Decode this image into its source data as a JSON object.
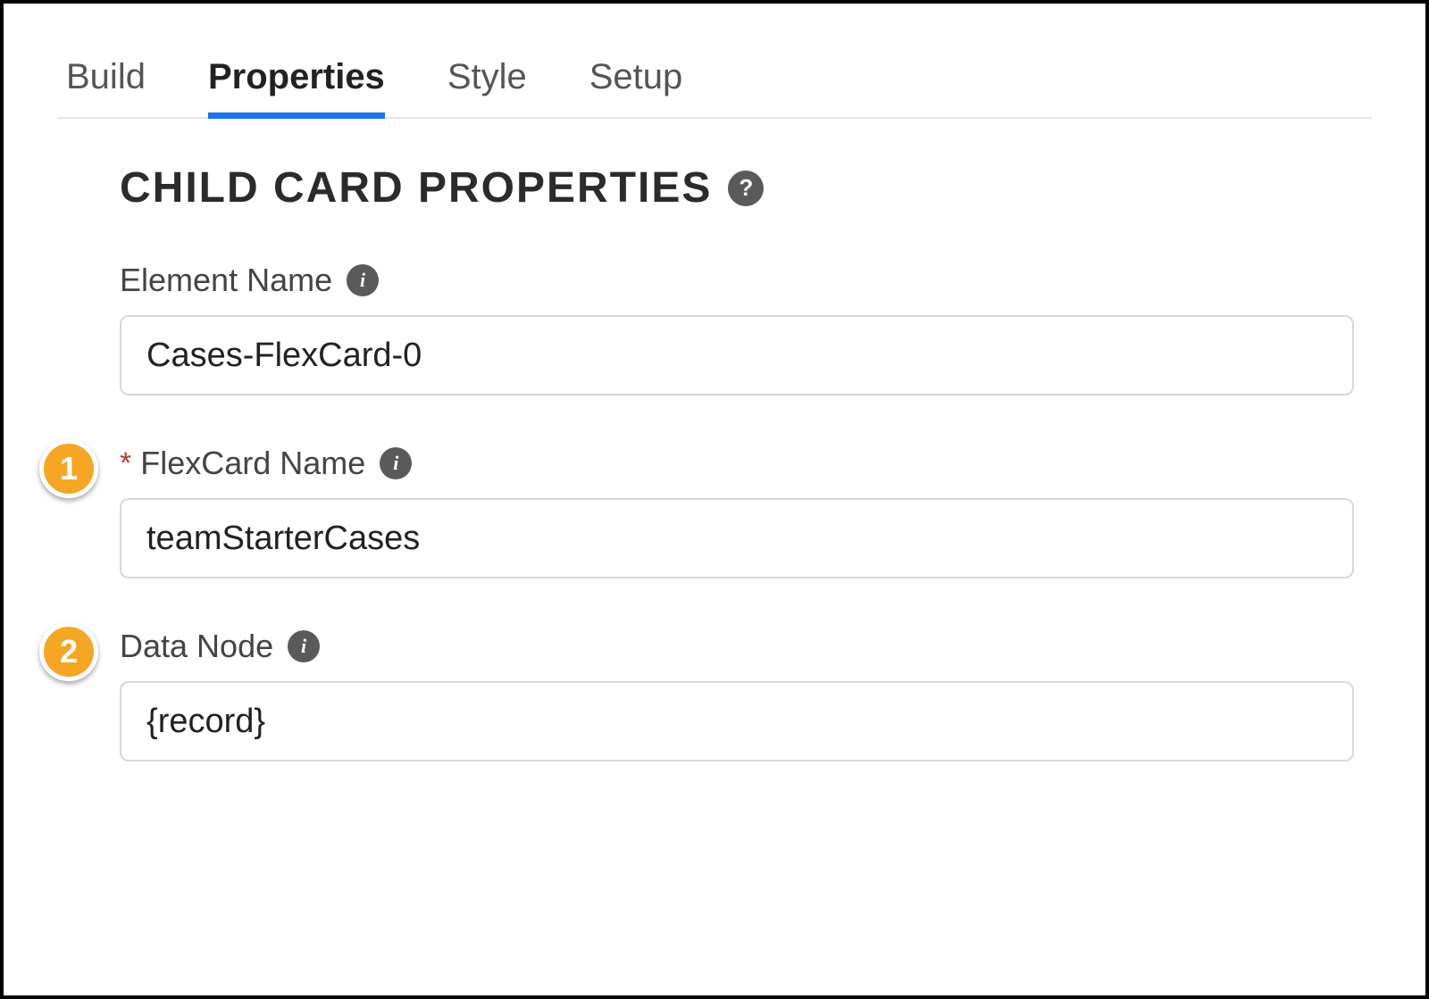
{
  "colors": {
    "border": "#000000",
    "tab_text": "#555555",
    "tab_active_text": "#222222",
    "tab_active_underline": "#1a73e8",
    "tab_divider": "#e5e5e5",
    "title_text": "#2b2b2b",
    "label_text": "#444444",
    "input_border": "#d8d8d8",
    "input_text": "#222222",
    "info_bg": "#5a5a5a",
    "info_fg": "#ffffff",
    "required_star": "#c23934",
    "callout_bg": "#f5a623",
    "callout_fg": "#ffffff"
  },
  "tabs": {
    "items": [
      "Build",
      "Properties",
      "Style",
      "Setup"
    ],
    "active_index": 1
  },
  "panel": {
    "title": "CHILD CARD PROPERTIES"
  },
  "fields": {
    "element_name": {
      "label": "Element Name",
      "value": "Cases-FlexCard-0",
      "required": false
    },
    "flexcard_name": {
      "label": "FlexCard Name",
      "value": "teamStarterCases",
      "required": true
    },
    "data_node": {
      "label": "Data Node",
      "value": "{record}",
      "required": false
    }
  },
  "callouts": {
    "flexcard_name": "1",
    "data_node": "2"
  }
}
